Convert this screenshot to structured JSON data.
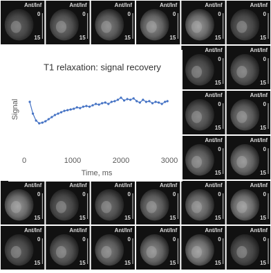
{
  "thumbnail": {
    "label": "Ant/Inf",
    "scale_top": "0",
    "scale_bottom": "15"
  },
  "chart_data": {
    "type": "line",
    "title": "T1 relaxation: signal recovery",
    "x_label": "Time, ms",
    "y_label": "Signal",
    "x": [
      115,
      180,
      245,
      310,
      375,
      440,
      505,
      570,
      635,
      700,
      765,
      830,
      895,
      960,
      1025,
      1090,
      1155,
      1220,
      1285,
      1350,
      1415,
      1480,
      1545,
      1610,
      1675,
      1740,
      1805,
      1870,
      1935,
      2000,
      2065,
      2130,
      2195,
      2260,
      2325,
      2390,
      2455,
      2520,
      2585,
      2650,
      2715,
      2780,
      2845,
      2910,
      2960
    ],
    "values": [
      63,
      46,
      36,
      32,
      33,
      35,
      38,
      41,
      44,
      46,
      48,
      50,
      51,
      52,
      53,
      55,
      54,
      56,
      57,
      56,
      58,
      60,
      59,
      61,
      62,
      60,
      63,
      64,
      66,
      69,
      65,
      67,
      66,
      68,
      64,
      62,
      66,
      63,
      64,
      61,
      63,
      62,
      60,
      63,
      64
    ],
    "color": "#4472c4",
    "xlim": [
      0,
      3000
    ],
    "xticks": [
      0,
      1000,
      2000,
      3000
    ],
    "ylim": [
      0,
      100
    ]
  }
}
